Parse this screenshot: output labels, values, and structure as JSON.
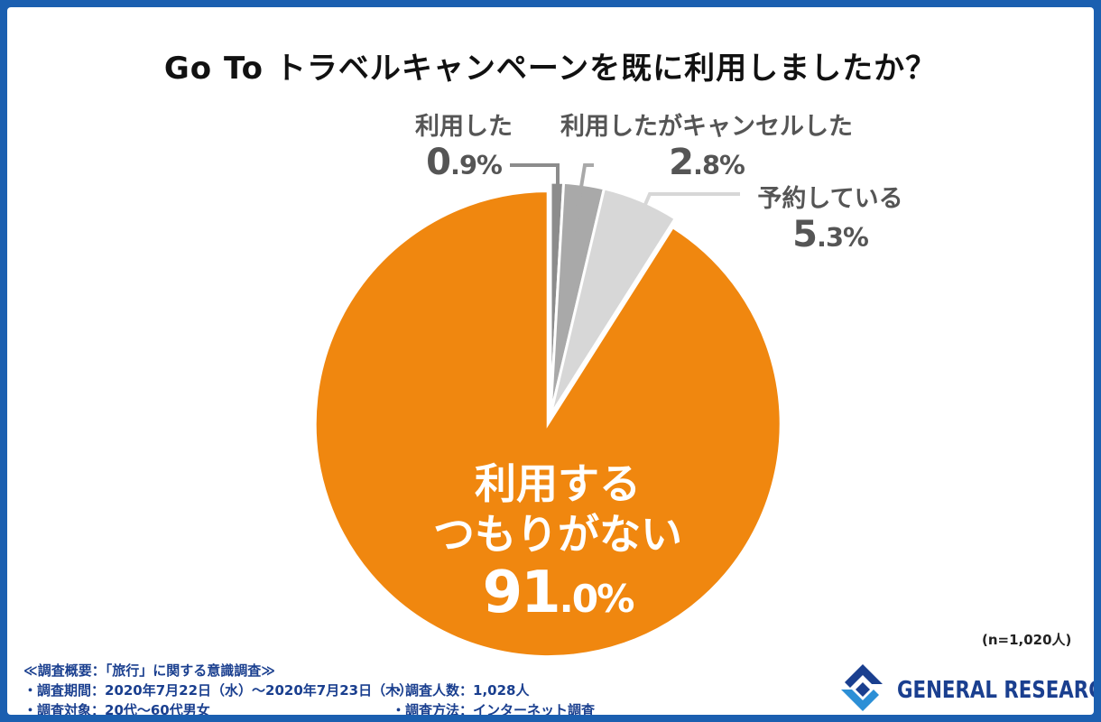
{
  "chart_data": {
    "type": "pie",
    "title": "Go To トラベルキャンペーンを既に利用しましたか？",
    "slices": [
      {
        "label": "利用した",
        "label_line2": "",
        "value": 0.9,
        "int": "0",
        "dec": ".9%",
        "color": "#8c8c8c"
      },
      {
        "label": "利用したがキャンセルした",
        "label_line2": "",
        "value": 2.8,
        "int": "2",
        "dec": ".8%",
        "color": "#a9a9a9"
      },
      {
        "label": "予約している",
        "label_line2": "",
        "value": 5.3,
        "int": "5",
        "dec": ".3%",
        "color": "#d7d7d7"
      },
      {
        "label": "利用する",
        "label_line2": "つもりがない",
        "value": 91.0,
        "int": "91",
        "dec": ".0%",
        "color": "#f0870f"
      }
    ],
    "sample_note": "(n=1,020人)"
  },
  "summary": {
    "heading": "≪調査概要：「旅行」に関する意識調査≫",
    "period": "・調査期間：2020年7月22日（水）～2020年7月23日（木）",
    "count": "・調査人数：1,028人",
    "target": "・調査対象：20代～60代男女",
    "method": "・調査方法：インターネット調査"
  },
  "logo": {
    "text": "GENERAL RESEARCH",
    "colors": [
      "#1a3f8f",
      "#2c8fd6"
    ]
  }
}
